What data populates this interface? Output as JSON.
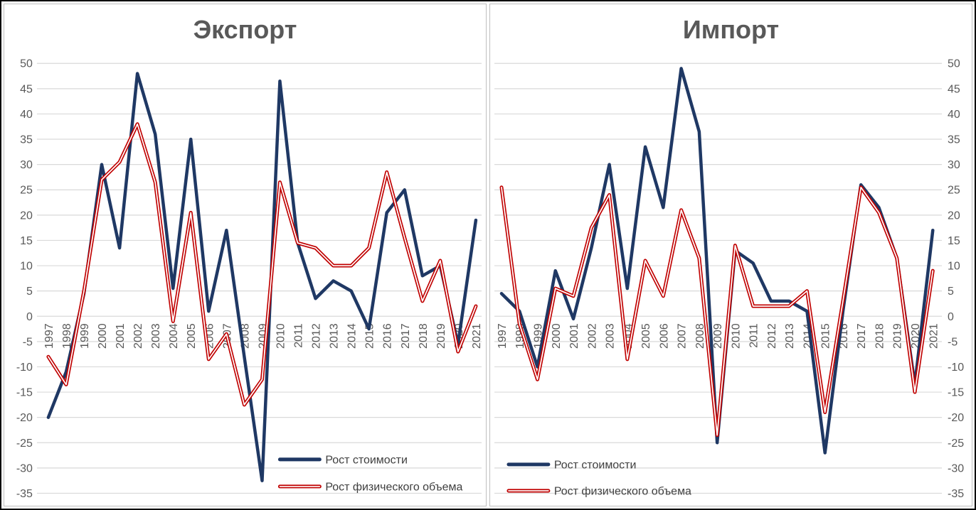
{
  "page": {
    "frame_border_color": "#000000",
    "panel_border_color": "#bfbfbf",
    "background": "#ffffff",
    "grid_color": "#d9d9d9",
    "tick_label_color": "#595959",
    "title_color": "#595959",
    "legend_text_color": "#404040"
  },
  "chart_data": [
    {
      "type": "line",
      "title": "Экспорт",
      "y_axis_side": "left",
      "legend_position": "bottom-right",
      "ylim": [
        -35,
        50
      ],
      "y_step": 5,
      "grid": true,
      "categories": [
        "1997",
        "1998",
        "1999",
        "2000",
        "2001",
        "2002",
        "2003",
        "2004",
        "2005",
        "2006",
        "2007",
        "2008",
        "2009",
        "2010",
        "2011",
        "2012",
        "2013",
        "2014",
        "2015",
        "2016",
        "2017",
        "2018",
        "2019",
        "2020",
        "2021"
      ],
      "series": [
        {
          "name": "Рост стоимости",
          "color": "#1f3864",
          "style": "solid",
          "values": [
            -20,
            -11,
            4.5,
            30,
            13.5,
            48,
            36,
            5.5,
            35,
            1,
            17,
            -8,
            -32.5,
            46.5,
            14.5,
            3.5,
            7,
            5,
            -2.5,
            20.5,
            25,
            8,
            10,
            -5.5,
            19
          ]
        },
        {
          "name": "Рост физического объема",
          "color": "#c00000",
          "style": "double",
          "core_color": "#ffffff",
          "values": [
            -8,
            -13.5,
            5,
            27,
            30.5,
            38,
            26.5,
            -1,
            20.5,
            -8.5,
            -3.5,
            -17.5,
            -12.5,
            26.5,
            14.5,
            13.5,
            10,
            10,
            13.5,
            28.5,
            15.5,
            3,
            11,
            -7,
            2
          ]
        }
      ]
    },
    {
      "type": "line",
      "title": "Импорт",
      "y_axis_side": "right",
      "legend_position": "bottom-left",
      "ylim": [
        -35,
        50
      ],
      "y_step": 5,
      "grid": true,
      "categories": [
        "1997",
        "1998",
        "1999",
        "2000",
        "2001",
        "2002",
        "2003",
        "2004",
        "2005",
        "2006",
        "2007",
        "2008",
        "2009",
        "2010",
        "2011",
        "2012",
        "2013",
        "2014",
        "2015",
        "2016",
        "2017",
        "2018",
        "2019",
        "2020",
        "2021"
      ],
      "series": [
        {
          "name": "Рост стоимости",
          "color": "#1f3864",
          "style": "solid",
          "values": [
            4.5,
            1,
            -10,
            9,
            -0.5,
            13.5,
            30,
            5.5,
            33.5,
            21.5,
            49,
            36.5,
            -25,
            13,
            10.5,
            3,
            3,
            1,
            -27,
            1,
            26,
            21.5,
            11.5,
            -13.5,
            17
          ]
        },
        {
          "name": "Рост физического объема",
          "color": "#c00000",
          "style": "double",
          "core_color": "#ffffff",
          "values": [
            25.5,
            -1.5,
            -12.5,
            5.5,
            4,
            17.5,
            24,
            -8.5,
            11,
            4,
            21,
            11.5,
            -23.5,
            14,
            2,
            2,
            2,
            5,
            -19,
            3,
            25.5,
            20.5,
            11.5,
            -15,
            9
          ]
        }
      ]
    }
  ]
}
